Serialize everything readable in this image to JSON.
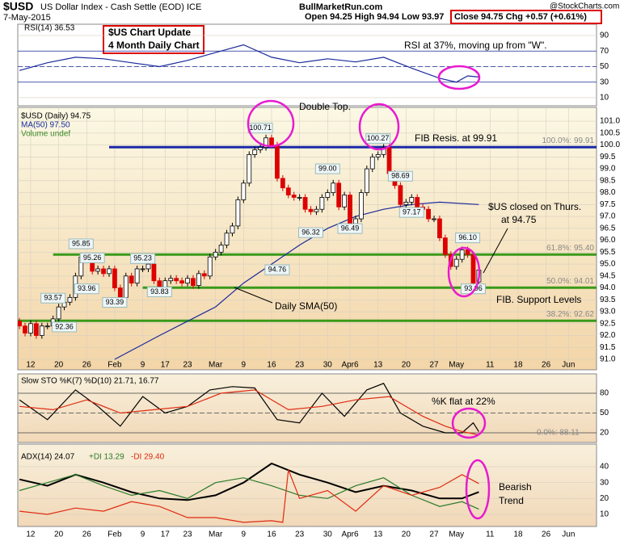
{
  "header": {
    "symbol": "$USD",
    "name": "US Dollar Index - Cash Settle (EOD) ICE",
    "date": "7-May-2015",
    "site": "BullMarketRun.com",
    "ohl": "Open 94.25  High 94.94  Low 93.97",
    "close": "Close 94.75  Chg +0.57 (+0.61%)",
    "credit": "@StockCharts.com"
  },
  "chart_data": [
    {
      "type": "candlestick",
      "legend": [
        "$USD (Daily) 94.75",
        "MA(50) 97.50",
        "Volume undef"
      ],
      "open": [
        92.6,
        92.4,
        92.1,
        92.5,
        92.0,
        92.4,
        92.4,
        92.7,
        93.2,
        93.4,
        93.6,
        94.5,
        95.3,
        95.3,
        94.7,
        94.8,
        94.6,
        94.8,
        94.0,
        93.6,
        94.5,
        94.2,
        94.8,
        94.8,
        95.0,
        94.3,
        94.0,
        94.3,
        94.4,
        94.3,
        94.2,
        94.4,
        94.1,
        94.6,
        94.5,
        95.3,
        95.5,
        95.8,
        96.3,
        96.6,
        97.7,
        98.4,
        99.6,
        99.8,
        99.9,
        100.3,
        100.0,
        98.6,
        98.2,
        97.9,
        97.8,
        97.8,
        97.3,
        97.2,
        97.3,
        97.8,
        98.0,
        98.4,
        97.4,
        97.9,
        96.7,
        96.9,
        98.0,
        99.0,
        99.5,
        99.6,
        99.9,
        98.8,
        98.3,
        97.5,
        97.6,
        97.8,
        97.4,
        97.3,
        96.9,
        96.9,
        96.1,
        95.4,
        94.9,
        95.2,
        95.6,
        95.4,
        94.25
      ],
      "close": [
        92.4,
        92.1,
        92.5,
        92.0,
        92.4,
        92.4,
        92.7,
        93.2,
        93.4,
        93.6,
        94.5,
        95.3,
        95.3,
        94.7,
        94.8,
        94.6,
        94.8,
        94.0,
        93.6,
        94.5,
        94.2,
        94.8,
        94.8,
        95.0,
        94.3,
        94.0,
        94.3,
        94.4,
        94.3,
        94.2,
        94.4,
        94.1,
        94.6,
        94.5,
        95.3,
        95.5,
        95.8,
        96.3,
        96.6,
        97.7,
        98.4,
        99.6,
        99.8,
        99.9,
        100.3,
        100.0,
        98.6,
        98.2,
        97.9,
        97.8,
        97.8,
        97.3,
        97.2,
        97.3,
        97.8,
        98.0,
        98.4,
        97.4,
        97.9,
        96.7,
        96.9,
        98.0,
        99.0,
        99.5,
        99.6,
        99.9,
        98.8,
        98.3,
        97.5,
        97.6,
        97.8,
        97.4,
        97.3,
        96.9,
        96.9,
        96.1,
        95.4,
        94.9,
        95.2,
        95.6,
        95.4,
        94.2,
        94.75
      ],
      "ma": {
        "color": "#1a2a9c",
        "x": [
          17,
          25,
          30,
          35,
          40,
          45,
          50,
          55,
          60,
          65,
          70,
          75,
          82
        ],
        "values": [
          91.0,
          92.0,
          92.6,
          93.2,
          94.2,
          95.0,
          95.8,
          96.5,
          97.0,
          97.3,
          97.5,
          97.6,
          97.5
        ]
      },
      "levels": [
        {
          "value": 99.91,
          "label": "100.0%: 99.91",
          "color": "#1a2aa8",
          "from": 16
        },
        {
          "value": 95.4,
          "label": "61.8%: 95.40",
          "color": "#3a9a1a",
          "from": 6
        },
        {
          "value": 94.01,
          "label": "50.0%: 94.01",
          "color": "#3a9a1a",
          "from": 22
        },
        {
          "value": 92.62,
          "label": "38.2%: 92.62",
          "color": "#3a9a1a",
          "from": -0.3
        }
      ],
      "price_labels": [
        {
          "x": 11,
          "value": 95.85
        },
        {
          "x": 13,
          "value": 95.26
        },
        {
          "x": 6,
          "value": 93.57
        },
        {
          "x": 12,
          "value": 93.96
        },
        {
          "x": 8,
          "value": 92.36
        },
        {
          "x": 17,
          "value": 93.39
        },
        {
          "x": 22,
          "value": 95.23
        },
        {
          "x": 25,
          "value": 93.83
        },
        {
          "x": 43,
          "value": 100.71
        },
        {
          "x": 46,
          "value": 94.76
        },
        {
          "x": 55,
          "value": 99.0,
          "label": "99.00"
        },
        {
          "x": 52,
          "value": 96.32
        },
        {
          "x": 59,
          "value": 96.49
        },
        {
          "x": 64,
          "value": 100.27
        },
        {
          "x": 68,
          "value": 98.69
        },
        {
          "x": 70,
          "value": 97.17
        },
        {
          "x": 80,
          "value": 96.1,
          "label": "96.10"
        },
        {
          "x": 81,
          "value": 93.96
        }
      ],
      "annotations": [
        "$US Chart Update",
        "4 Month Daily Chart",
        "Double Top.",
        "FIB Resis. at 99.91",
        "$US closed on Thurs.",
        "at 94.75",
        "FIB. Support Levels",
        "Daily SMA(50)"
      ],
      "ylim": [
        90.56,
        101.58
      ],
      "yticks": [
        {
          "value": 101,
          "label": "101.0"
        },
        100.5,
        {
          "value": 100,
          "label": "100.0"
        },
        99.5,
        {
          "value": 99,
          "label": "99.0"
        },
        98.5,
        {
          "value": 98,
          "label": "98.0"
        },
        97.5,
        {
          "value": 97,
          "label": "97.0"
        },
        96.5,
        {
          "value": 96,
          "label": "96.0"
        },
        95.5,
        {
          "value": 95,
          "label": "95.0"
        },
        94.5,
        {
          "value": 94,
          "label": "94.0"
        },
        93.5,
        {
          "value": 93,
          "label": "93.0"
        },
        92.5,
        {
          "value": 92,
          "label": "92.0"
        },
        91.5,
        {
          "value": 91,
          "label": "91.0"
        }
      ],
      "xlim": [
        -0.3,
        103
      ],
      "xticks": [
        {
          "value": 2,
          "label": "12"
        },
        {
          "value": 7,
          "label": "20"
        },
        {
          "value": 12,
          "label": "26"
        },
        {
          "value": 17,
          "label": "Feb"
        },
        {
          "value": 22,
          "label": "9"
        },
        {
          "value": 26,
          "label": "17"
        },
        {
          "value": 30,
          "label": "23"
        },
        {
          "value": 35,
          "label": "Mar"
        },
        {
          "value": 40,
          "label": "9"
        },
        {
          "value": 45,
          "label": "16"
        },
        {
          "value": 50,
          "label": "23"
        },
        {
          "value": 55,
          "label": "30"
        },
        {
          "value": 59,
          "label": "Apr6"
        },
        {
          "value": 64,
          "label": "13"
        },
        {
          "value": 69,
          "label": "20"
        },
        {
          "value": 74,
          "label": "27"
        },
        {
          "value": 78,
          "label": "May"
        },
        {
          "value": 84,
          "label": "11"
        },
        {
          "value": 89,
          "label": "18"
        },
        {
          "value": 94,
          "label": "26"
        },
        {
          "value": 98,
          "label": "Jun"
        }
      ]
    },
    {
      "type": "line",
      "legend": [
        "RSI(14) 36.53"
      ],
      "annotations": [
        "RSI at 37%, moving up from \"W\"."
      ],
      "series": [
        {
          "color": "#1a2a9c",
          "x": [
            0,
            5,
            10,
            15,
            20,
            25,
            30,
            35,
            40,
            45,
            50,
            55,
            60,
            65,
            70,
            75,
            78,
            80,
            82
          ],
          "values": [
            45,
            55,
            62,
            60,
            55,
            50,
            58,
            68,
            78,
            62,
            55,
            60,
            56,
            62,
            48,
            35,
            30,
            38,
            36.53
          ]
        }
      ],
      "ylim": [
        -0.4,
        104.5
      ],
      "yticks": [
        90,
        70,
        50,
        30,
        10
      ],
      "refs": [
        70,
        50,
        30
      ]
    },
    {
      "type": "line",
      "legend": [
        "Slow STO %K(7) %D(10) 21.71, 16.77"
      ],
      "annotations": [
        "%K flat at 22%",
        "0.0%: 88.11"
      ],
      "series": [
        {
          "color": "#000000",
          "x": [
            0,
            5,
            10,
            14,
            18,
            22,
            26,
            30,
            34,
            38,
            42,
            46,
            50,
            54,
            58,
            62,
            65,
            68,
            72,
            76,
            79,
            81,
            82
          ],
          "values": [
            70,
            40,
            85,
            60,
            30,
            75,
            50,
            60,
            85,
            90,
            88,
            40,
            35,
            80,
            45,
            85,
            95,
            50,
            30,
            20,
            20,
            35,
            21.71
          ]
        },
        {
          "color": "#e02a10",
          "x": [
            0,
            6,
            12,
            18,
            24,
            30,
            36,
            42,
            48,
            54,
            60,
            66,
            72,
            76,
            79,
            82
          ],
          "values": [
            60,
            55,
            70,
            50,
            55,
            60,
            80,
            85,
            55,
            60,
            70,
            75,
            45,
            30,
            22,
            16.77
          ]
        }
      ],
      "ylim": [
        5.3,
        109.4
      ],
      "yticks": [
        80,
        50,
        20
      ],
      "refs": [
        80,
        50,
        20
      ]
    },
    {
      "type": "line",
      "legend": [
        "ADX(14) 24.07",
        "+DI 13.29",
        "-DI 29.40"
      ],
      "annotations": [
        "Bearish",
        "Trend"
      ],
      "series": [
        {
          "color": "#000000",
          "x": [
            0,
            5,
            10,
            15,
            20,
            25,
            30,
            35,
            40,
            45,
            50,
            55,
            60,
            65,
            70,
            75,
            79,
            82
          ],
          "values": [
            32,
            28,
            35,
            30,
            24,
            20,
            19,
            22,
            30,
            42,
            35,
            30,
            24,
            28,
            25,
            20,
            20,
            24.07
          ]
        },
        {
          "color": "#2a7a2a",
          "x": [
            0,
            5,
            10,
            15,
            20,
            25,
            30,
            35,
            40,
            45,
            50,
            55,
            60,
            65,
            70,
            75,
            79,
            82
          ],
          "values": [
            25,
            30,
            35,
            28,
            22,
            25,
            20,
            30,
            33,
            28,
            22,
            20,
            28,
            33,
            22,
            15,
            18,
            13.29
          ]
        },
        {
          "color": "#e02a10",
          "x": [
            0,
            5,
            10,
            15,
            20,
            25,
            30,
            35,
            40,
            45,
            47,
            48,
            50,
            55,
            60,
            65,
            70,
            75,
            79,
            82
          ],
          "values": [
            12,
            10,
            14,
            12,
            18,
            15,
            8,
            8,
            5,
            6,
            5,
            38,
            20,
            25,
            12,
            28,
            22,
            27,
            35,
            29.4
          ]
        }
      ],
      "ylim": [
        2.4,
        54.2
      ],
      "yticks": [
        40,
        30,
        20,
        10
      ]
    }
  ]
}
